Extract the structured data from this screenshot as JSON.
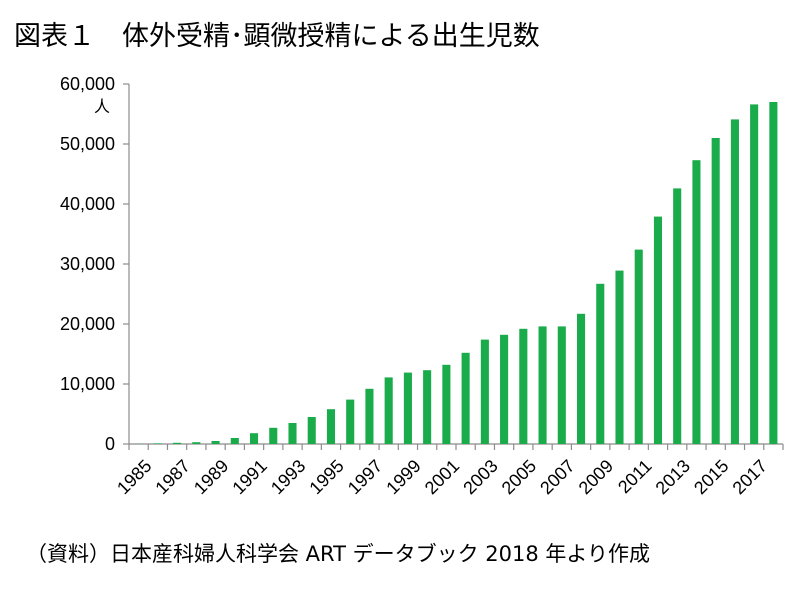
{
  "title": "図表１　体外受精･顕微授精による出生児数",
  "source": "（資料）日本産科婦人科学会 ART データブック 2018 年より作成",
  "chart_data": {
    "type": "bar",
    "title": "図表１　体外受精･顕微授精による出生児数",
    "ylabel": "人",
    "ylim": [
      0,
      60000
    ],
    "yticks": [
      0,
      10000,
      20000,
      30000,
      40000,
      50000,
      60000
    ],
    "ytick_labels": [
      "0",
      "10,000",
      "20,000",
      "30,000",
      "40,000",
      "50,000",
      "60,000"
    ],
    "categories": [
      "1985",
      "1986",
      "1987",
      "1988",
      "1989",
      "1990",
      "1991",
      "1992",
      "1993",
      "1994",
      "1995",
      "1996",
      "1997",
      "1998",
      "1999",
      "2000",
      "2001",
      "2002",
      "2003",
      "2004",
      "2005",
      "2006",
      "2007",
      "2008",
      "2009",
      "2010",
      "2011",
      "2012",
      "2013",
      "2014",
      "2015",
      "2016",
      "2017",
      "2018"
    ],
    "xtick_labels": [
      "1985",
      "1987",
      "1989",
      "1991",
      "1993",
      "1995",
      "1997",
      "1999",
      "2001",
      "2003",
      "2005",
      "2007",
      "2009",
      "2011",
      "2013",
      "2015",
      "2017"
    ],
    "values": [
      27,
      100,
      200,
      300,
      500,
      1000,
      1800,
      2700,
      3500,
      4500,
      5800,
      7400,
      9200,
      11100,
      11900,
      12300,
      13200,
      15200,
      17400,
      18200,
      19200,
      19600,
      19600,
      21700,
      26700,
      28900,
      32400,
      37900,
      42600,
      47300,
      51000,
      54100,
      56600,
      57000
    ],
    "bar_color": "#1aab4b",
    "grid": false,
    "legend": "none"
  }
}
